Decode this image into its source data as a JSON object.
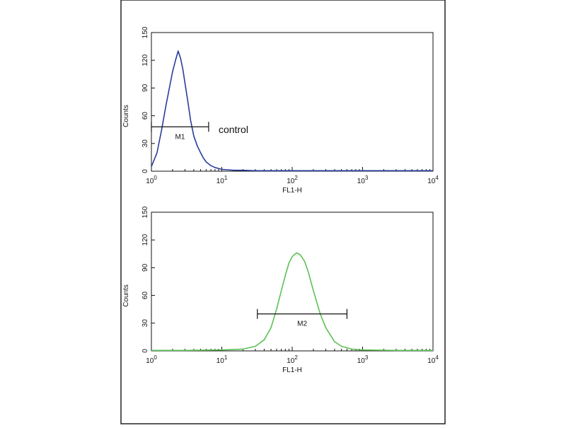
{
  "chart_data": [
    {
      "type": "line",
      "xlabel": "FL1-H",
      "ylabel": "Counts",
      "xscale": "log",
      "xlim": [
        1,
        10000
      ],
      "ylim": [
        0,
        150
      ],
      "x_ticks": [
        {
          "base": "10",
          "exp": "0"
        },
        {
          "base": "10",
          "exp": "1"
        },
        {
          "base": "10",
          "exp": "2"
        },
        {
          "base": "10",
          "exp": "3"
        },
        {
          "base": "10",
          "exp": "4"
        }
      ],
      "y_ticks": [
        "0",
        "30",
        "60",
        "90",
        "120",
        "150"
      ],
      "color": "#2a3c9c",
      "series": [
        {
          "x": [
            1.0,
            1.2,
            1.4,
            1.6,
            1.8,
            2.0,
            2.2,
            2.4,
            2.6,
            2.8,
            3.0,
            3.3,
            3.6,
            4.0,
            4.5,
            5.0,
            5.5,
            6.0,
            7.0,
            8.0,
            9.0,
            10,
            12,
            15,
            20,
            30,
            50,
            100,
            300,
            1000,
            3000,
            10000
          ],
          "y": [
            5,
            20,
            45,
            70,
            90,
            108,
            120,
            130,
            122,
            110,
            95,
            75,
            55,
            38,
            27,
            20,
            14,
            10,
            6,
            4,
            3,
            2,
            1.5,
            1,
            1,
            0.5,
            0.5,
            0.5,
            0.5,
            0.5,
            0.5,
            0.5
          ]
        }
      ],
      "markers": [
        {
          "label": "M1",
          "x_start": 1.0,
          "x_end": 6.5,
          "y": 48
        }
      ],
      "annotations": [
        {
          "text": "control",
          "x": 9,
          "y": 45
        }
      ]
    },
    {
      "type": "line",
      "xlabel": "FL1-H",
      "ylabel": "Counts",
      "xscale": "log",
      "xlim": [
        1,
        10000
      ],
      "ylim": [
        0,
        150
      ],
      "x_ticks": [
        {
          "base": "10",
          "exp": "0"
        },
        {
          "base": "10",
          "exp": "1"
        },
        {
          "base": "10",
          "exp": "2"
        },
        {
          "base": "10",
          "exp": "3"
        },
        {
          "base": "10",
          "exp": "4"
        }
      ],
      "y_ticks": [
        "0",
        "30",
        "60",
        "90",
        "120",
        "150"
      ],
      "color": "#5cc152",
      "series": [
        {
          "x": [
            1,
            3,
            10,
            20,
            30,
            40,
            50,
            60,
            70,
            80,
            90,
            100,
            115,
            130,
            150,
            170,
            200,
            250,
            300,
            400,
            500,
            700,
            1000,
            3000,
            10000
          ],
          "y": [
            0.5,
            0.5,
            1,
            2,
            5,
            12,
            25,
            45,
            65,
            82,
            95,
            102,
            106,
            104,
            97,
            85,
            65,
            40,
            25,
            10,
            5,
            2,
            1,
            0.5,
            0.5
          ]
        }
      ],
      "markers": [
        {
          "label": "M2",
          "x_start": 32,
          "x_end": 600,
          "y": 40
        }
      ],
      "annotations": []
    }
  ]
}
